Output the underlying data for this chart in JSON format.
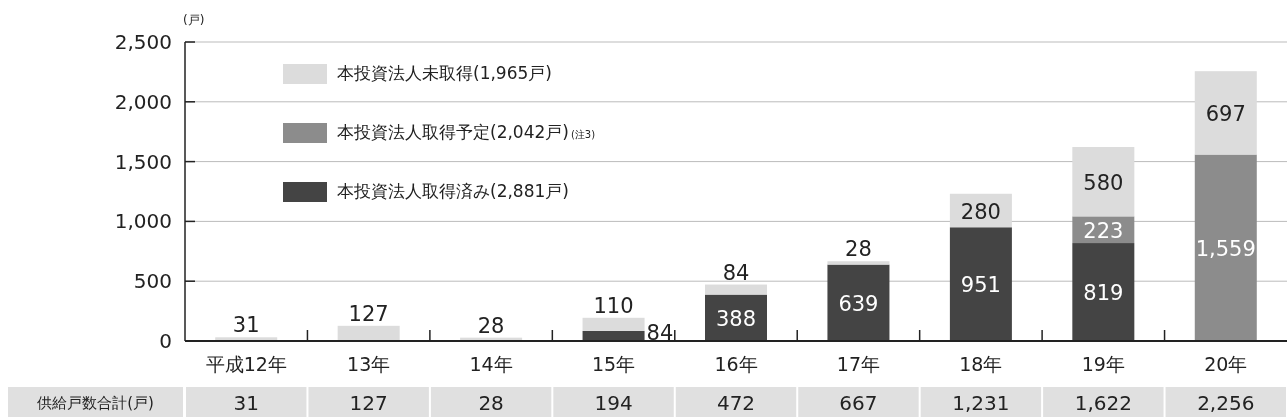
{
  "chart_data": {
    "type": "bar",
    "stacked": true,
    "ylabel": "(戸)",
    "categories": [
      "平成12年",
      "13年",
      "14年",
      "15年",
      "16年",
      "17年",
      "18年",
      "19年",
      "20年"
    ],
    "series": [
      {
        "name": "本投資法人取得済み(2,881戸)",
        "color": "#444444",
        "values": [
          null,
          null,
          null,
          84,
          388,
          639,
          951,
          819,
          null
        ],
        "value_labels": [
          null,
          null,
          null,
          "84",
          "388",
          "639",
          "951",
          "819",
          null
        ]
      },
      {
        "name": "本投資法人取得予定(2,042戸)$_{(注3)}$",
        "color": "#8c8c8c",
        "values": [
          null,
          null,
          null,
          null,
          null,
          null,
          null,
          223,
          1559
        ],
        "value_labels": [
          null,
          null,
          null,
          null,
          null,
          null,
          null,
          "223",
          "1,559"
        ]
      },
      {
        "name": "本投資法人未取得(1,965戸)",
        "color": "#dcdcdc",
        "values": [
          31,
          127,
          28,
          110,
          84,
          28,
          280,
          580,
          697
        ],
        "value_labels": [
          "31",
          "127",
          "28",
          "110",
          "84",
          "28",
          "280",
          "580",
          "697"
        ]
      }
    ],
    "ylim": [
      0,
      2500
    ],
    "yticks": [
      0,
      {
        "value": 500,
        "label": "500"
      },
      {
        "value": 1000,
        "label": "1,000"
      },
      {
        "value": 1500,
        "label": "1,500"
      },
      {
        "value": 2000,
        "label": "2,000"
      },
      {
        "value": 2500,
        "label": "2,500"
      }
    ],
    "grid": "y",
    "legend": "top left",
    "totals": [
      "31",
      "127",
      "28",
      "194",
      "472",
      "667",
      "1,231",
      "1,622",
      "2,256"
    ],
    "annotations": [
      "供給戸数合計(戸)"
    ]
  }
}
